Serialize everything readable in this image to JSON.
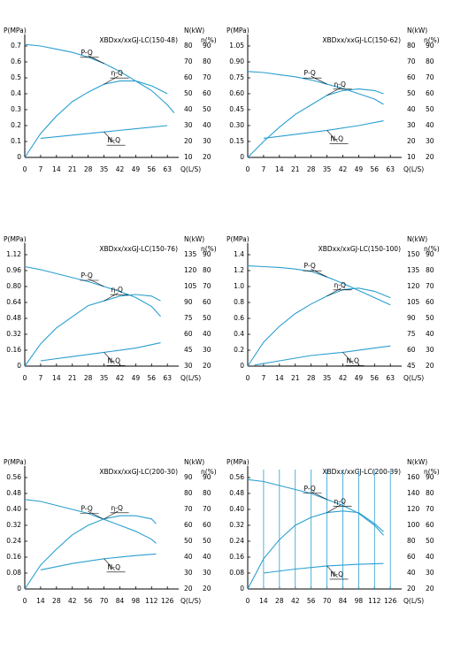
{
  "chart_data": [
    {
      "type": "line",
      "title": "XBDxx/xxGJ-LC(150-48)",
      "x_label": "Q(L/S)",
      "y_label": "P(MPa)",
      "y2_label": "N(kW)",
      "y3_label": "η(%)",
      "xlim": [
        0,
        68
      ],
      "xticks": [
        0,
        7,
        14,
        21,
        28,
        35,
        42,
        49,
        56,
        63
      ],
      "ylim": [
        0,
        0.75
      ],
      "yticks": [
        0,
        0.1,
        0.2,
        0.3,
        0.4,
        0.5,
        0.6,
        0.7
      ],
      "y2lim": [
        10,
        85
      ],
      "y2ticks": [
        10,
        20,
        30,
        40,
        50,
        60,
        70,
        80
      ],
      "y3lim": [
        20,
        95
      ],
      "y3ticks": [
        20,
        30,
        40,
        50,
        60,
        70,
        80,
        90
      ],
      "series": [
        {
          "name": "P-Q",
          "axis": "y",
          "color": "#2a9fd0",
          "x": [
            0,
            7,
            14,
            21,
            28,
            35,
            42,
            49,
            56,
            63,
            66
          ],
          "values": [
            0.71,
            0.7,
            0.68,
            0.66,
            0.63,
            0.59,
            0.54,
            0.48,
            0.42,
            0.33,
            0.28
          ]
        },
        {
          "name": "η-Q",
          "axis": "y3",
          "color": "#2a9fd0",
          "x": [
            0,
            7,
            14,
            21,
            28,
            35,
            42,
            49,
            56,
            63
          ],
          "values": [
            20,
            35,
            46,
            55,
            61,
            66,
            68,
            68,
            65,
            60
          ]
        },
        {
          "name": "N-Q",
          "axis": "y2",
          "color": "#2a9fd0",
          "x": [
            7,
            21,
            35,
            49,
            63
          ],
          "values": [
            22,
            24,
            26,
            28,
            30
          ]
        }
      ]
    },
    {
      "type": "line",
      "title": "XBDxx/xxGJ-LC(150-62)",
      "x_label": "Q(L/S)",
      "y_label": "P(MPa)",
      "y2_label": "N(kW)",
      "y3_label": "η(%)",
      "xlim": [
        0,
        68
      ],
      "xticks": [
        0,
        7,
        14,
        21,
        28,
        35,
        42,
        49,
        56,
        63
      ],
      "ylim": [
        0,
        1.125
      ],
      "yticks": [
        0,
        0.15,
        {
          "value": 0.3,
          "label": "0.30"
        },
        0.45,
        {
          "value": 0.6,
          "label": "0.60"
        },
        0.75,
        {
          "value": 0.9,
          "label": "0.90"
        },
        1.05
      ],
      "y2lim": [
        10,
        85
      ],
      "y2ticks": [
        10,
        20,
        30,
        40,
        50,
        60,
        70,
        80
      ],
      "y3lim": [
        20,
        95
      ],
      "y3ticks": [
        20,
        30,
        40,
        50,
        60,
        70,
        80,
        90
      ],
      "series": [
        {
          "name": "P-Q",
          "axis": "y",
          "color": "#2a9fd0",
          "x": [
            0,
            7,
            14,
            21,
            28,
            35,
            42,
            49,
            56,
            60
          ],
          "values": [
            0.81,
            0.8,
            0.78,
            0.76,
            0.73,
            0.69,
            0.65,
            0.6,
            0.55,
            0.5
          ]
        },
        {
          "name": "η-Q",
          "axis": "y3",
          "color": "#2a9fd0",
          "x": [
            0,
            7,
            14,
            21,
            28,
            35,
            42,
            49,
            56,
            60
          ],
          "values": [
            20,
            30,
            39,
            47,
            53,
            59,
            62,
            63,
            62,
            60
          ]
        },
        {
          "name": "N-Q",
          "axis": "y2",
          "color": "#2a9fd0",
          "x": [
            7,
            21,
            35,
            49,
            60
          ],
          "values": [
            22,
            24.5,
            27,
            30,
            33
          ]
        }
      ]
    },
    {
      "type": "line",
      "title": "XBDxx/xxGJ-LC(150-76)",
      "x_label": "Q(L/S)",
      "y_label": "P(MPa)",
      "y2_label": "N(kW)",
      "y3_label": "η(%)",
      "xlim": [
        0,
        68
      ],
      "xticks": [
        0,
        7,
        14,
        21,
        28,
        35,
        42,
        49,
        56,
        63
      ],
      "ylim": [
        0,
        1.2
      ],
      "yticks": [
        0,
        0.16,
        0.32,
        0.48,
        0.64,
        {
          "value": 0.8,
          "label": "0.80"
        },
        0.96,
        1.12
      ],
      "y2lim": [
        30,
        142.5
      ],
      "y2ticks": [
        30,
        45,
        60,
        75,
        90,
        105,
        120,
        135
      ],
      "y3lim": [
        20,
        95
      ],
      "y3ticks": [
        20,
        30,
        40,
        50,
        60,
        70,
        80,
        90
      ],
      "series": [
        {
          "name": "P-Q",
          "axis": "y",
          "color": "#2a9fd0",
          "x": [
            0,
            7,
            14,
            21,
            28,
            35,
            42,
            49,
            56,
            60
          ],
          "values": [
            1.0,
            0.97,
            0.93,
            0.89,
            0.85,
            0.8,
            0.75,
            0.69,
            0.6,
            0.5
          ]
        },
        {
          "name": "η-Q",
          "axis": "y3",
          "color": "#2a9fd0",
          "x": [
            0,
            7,
            14,
            21,
            28,
            35,
            42,
            49,
            56,
            60
          ],
          "values": [
            20,
            34,
            44,
            51,
            58,
            61,
            64,
            65,
            64,
            61
          ]
        },
        {
          "name": "N-Q",
          "axis": "y2",
          "color": "#2a9fd0",
          "x": [
            7,
            21,
            35,
            49,
            60
          ],
          "values": [
            35,
            39,
            43,
            47,
            52
          ]
        }
      ]
    },
    {
      "type": "line",
      "title": "XBDxx/xxGJ-LC(150-100)",
      "x_label": "Q(L/S)",
      "y_label": "P(MPa)",
      "y2_label": "N(kW)",
      "y3_label": "η(%)",
      "xlim": [
        0,
        68
      ],
      "xticks": [
        0,
        7,
        14,
        21,
        28,
        35,
        42,
        49,
        56,
        63
      ],
      "ylim": [
        0,
        1.5
      ],
      "yticks": [
        0,
        0.2,
        0.4,
        0.6,
        0.8,
        {
          "value": 1.0,
          "label": "1.0"
        },
        1.2,
        1.4
      ],
      "y2lim": [
        45,
        157.5
      ],
      "y2ticks": [
        45,
        60,
        75,
        90,
        105,
        120,
        135,
        150
      ],
      "y3lim": [
        20,
        95
      ],
      "y3ticks": [
        20,
        30,
        40,
        50,
        60,
        70,
        80,
        90
      ],
      "series": [
        {
          "name": "P-Q",
          "axis": "y",
          "color": "#2a9fd0",
          "x": [
            0,
            7,
            14,
            21,
            28,
            35,
            42,
            49,
            56,
            63
          ],
          "values": [
            1.26,
            1.25,
            1.24,
            1.22,
            1.19,
            1.12,
            1.04,
            0.95,
            0.86,
            0.77
          ]
        },
        {
          "name": "η-Q",
          "axis": "y3",
          "color": "#2a9fd0",
          "x": [
            0,
            7,
            14,
            21,
            28,
            35,
            42,
            49,
            56,
            63
          ],
          "values": [
            20,
            35,
            45,
            53,
            59,
            64,
            68,
            69,
            67,
            63
          ]
        },
        {
          "name": "N-Q",
          "axis": "y2",
          "color": "#2a9fd0",
          "x": [
            3,
            14,
            28,
            42,
            56,
            63
          ],
          "values": [
            46,
            50,
            55,
            58,
            62,
            64
          ]
        }
      ]
    },
    {
      "type": "line",
      "title": "XBDxx/xxGJ-LC(200-30)",
      "x_label": "Q(L/S)",
      "y_label": "P(MPa)",
      "y2_label": "N(kW)",
      "y3_label": "η(%)",
      "xlim": [
        0,
        136
      ],
      "xticks": [
        0,
        14,
        28,
        42,
        56,
        70,
        84,
        98,
        112,
        126
      ],
      "ylim": [
        0,
        0.6
      ],
      "yticks": [
        0,
        0.08,
        0.16,
        0.24,
        0.32,
        {
          "value": 0.4,
          "label": "0.40"
        },
        0.48,
        0.56
      ],
      "y2lim": [
        20,
        95
      ],
      "y2ticks": [
        20,
        30,
        40,
        50,
        60,
        70,
        80,
        90
      ],
      "y3lim": [
        20,
        95
      ],
      "y3ticks": [
        20,
        30,
        40,
        50,
        60,
        70,
        80,
        90
      ],
      "series": [
        {
          "name": "P-Q",
          "axis": "y",
          "color": "#2a9fd0",
          "x": [
            0,
            14,
            28,
            42,
            56,
            70,
            84,
            98,
            112,
            116
          ],
          "values": [
            0.45,
            0.44,
            0.42,
            0.4,
            0.38,
            0.35,
            0.32,
            0.29,
            0.25,
            0.23
          ]
        },
        {
          "name": "η-Q",
          "axis": "y3",
          "color": "#2a9fd0",
          "x": [
            0,
            14,
            28,
            42,
            56,
            70,
            84,
            98,
            112,
            116
          ],
          "values": [
            20,
            35,
            45,
            54,
            60,
            64,
            66,
            66,
            64,
            61
          ]
        },
        {
          "name": "N-Q",
          "axis": "y2",
          "color": "#2a9fd0",
          "x": [
            14,
            42,
            70,
            98,
            116
          ],
          "values": [
            32,
            36,
            39,
            41,
            42
          ]
        }
      ]
    },
    {
      "type": "line",
      "title": "XBDxx/xxGJ-LC(200-39)",
      "x_label": "Q(L/S)",
      "y_label": "P(MPa)",
      "y2_label": "N(kW)",
      "y3_label": "η(%)",
      "xlim": [
        0,
        136
      ],
      "xticks": [
        0,
        14,
        28,
        42,
        56,
        70,
        84,
        98,
        112,
        126
      ],
      "xgrid": true,
      "ylim": [
        0,
        0.6
      ],
      "yticks": [
        0,
        0.08,
        0.16,
        0.24,
        0.32,
        {
          "value": 0.4,
          "label": "0.40"
        },
        0.48,
        0.56
      ],
      "y2lim": [
        20,
        170
      ],
      "y2ticks": [
        20,
        40,
        60,
        80,
        100,
        120,
        140,
        160
      ],
      "y3lim": [
        20,
        95
      ],
      "y3ticks": [
        20,
        30,
        40,
        50,
        60,
        70,
        80,
        90
      ],
      "series": [
        {
          "name": "P-Q",
          "axis": "y",
          "color": "#2a9fd0",
          "x": [
            0,
            14,
            28,
            42,
            56,
            70,
            84,
            98,
            112,
            120
          ],
          "values": [
            0.55,
            0.54,
            0.52,
            0.5,
            0.48,
            0.45,
            0.42,
            0.38,
            0.32,
            0.27
          ]
        },
        {
          "name": "η-Q",
          "axis": "y3",
          "color": "#2a9fd0",
          "x": [
            0,
            14,
            28,
            42,
            56,
            70,
            84,
            98,
            112,
            120
          ],
          "values": [
            20,
            39,
            51,
            60,
            65,
            68,
            69,
            68,
            61,
            56
          ]
        },
        {
          "name": "N-Q",
          "axis": "y2",
          "color": "#2a9fd0",
          "x": [
            14,
            42,
            70,
            98,
            120
          ],
          "values": [
            40,
            45,
            49,
            51,
            52
          ]
        }
      ]
    }
  ]
}
